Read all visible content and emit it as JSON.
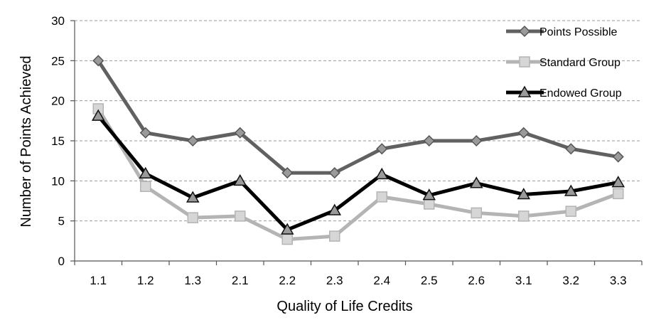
{
  "chart_data": {
    "type": "line",
    "title": "",
    "xlabel": "Quality of Life Credits",
    "ylabel": "Number of Points Achieved",
    "categories": [
      "1.1",
      "1.2",
      "1.3",
      "2.1",
      "2.2",
      "2.3",
      "2.4",
      "2.5",
      "2.6",
      "3.1",
      "3.2",
      "3.3"
    ],
    "ylim": [
      0,
      30
    ],
    "yticks": [
      0,
      5,
      10,
      15,
      20,
      25,
      30
    ],
    "grid": "horizontal dashed",
    "legend_position": "top-right",
    "series": [
      {
        "name": "Points  Possible",
        "marker": "diamond",
        "line_color": "#616161",
        "marker_fill": "#9a9a9a",
        "values": [
          25,
          16,
          15,
          16,
          11,
          11,
          14,
          15,
          15,
          16,
          14,
          13
        ]
      },
      {
        "name": "Standard Group",
        "marker": "square",
        "line_color": "#b4b4b4",
        "marker_fill": "#d6d6d6",
        "values": [
          19,
          9.3,
          5.4,
          5.6,
          2.7,
          3.1,
          8,
          7.1,
          6,
          5.6,
          6.2,
          8.4
        ]
      },
      {
        "name": "Endowed Group",
        "marker": "triangle",
        "line_color": "#000000",
        "marker_fill": "#9a9a9a",
        "values": [
          18.1,
          10.9,
          7.9,
          10,
          3.9,
          6.3,
          10.8,
          8.2,
          9.7,
          8.3,
          8.7,
          9.8
        ]
      }
    ]
  }
}
